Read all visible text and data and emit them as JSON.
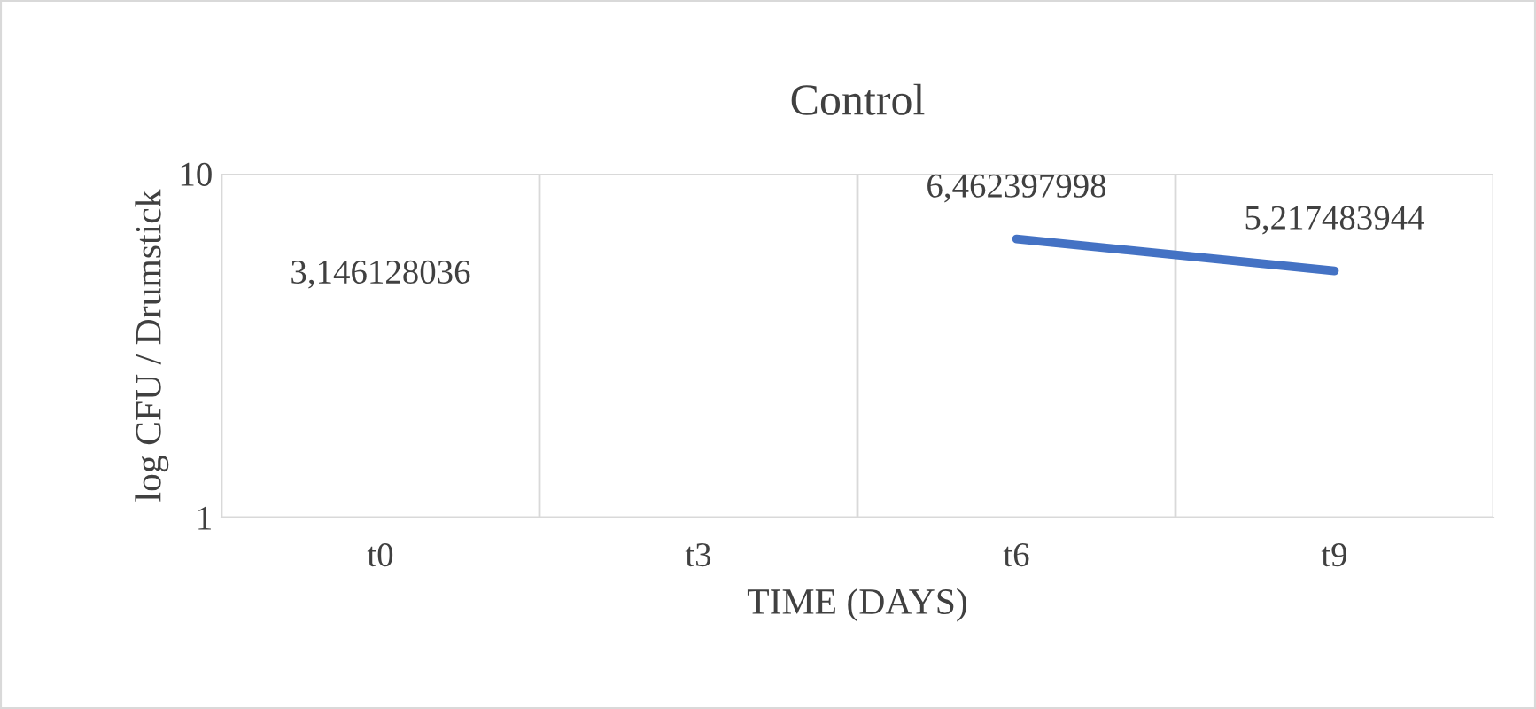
{
  "chart_data": {
    "type": "line",
    "title": "Control",
    "xlabel": "TIME (DAYS)",
    "ylabel": "log CFU / Drumstick",
    "categories": [
      "t0",
      "t3",
      "t6",
      "t9"
    ],
    "series": [
      {
        "color": "#4472c4",
        "values": [
          null,
          null,
          6.462397998,
          5.217483944
        ],
        "value_labels": [
          null,
          null,
          "6,462397998",
          "5,217483944"
        ]
      }
    ],
    "annotations": [
      "3,146128036"
    ],
    "log": true,
    "ylim": [
      1,
      10
    ],
    "yticks": [
      1,
      10
    ],
    "grid": true,
    "marker": "none",
    "line_style": "solid"
  }
}
